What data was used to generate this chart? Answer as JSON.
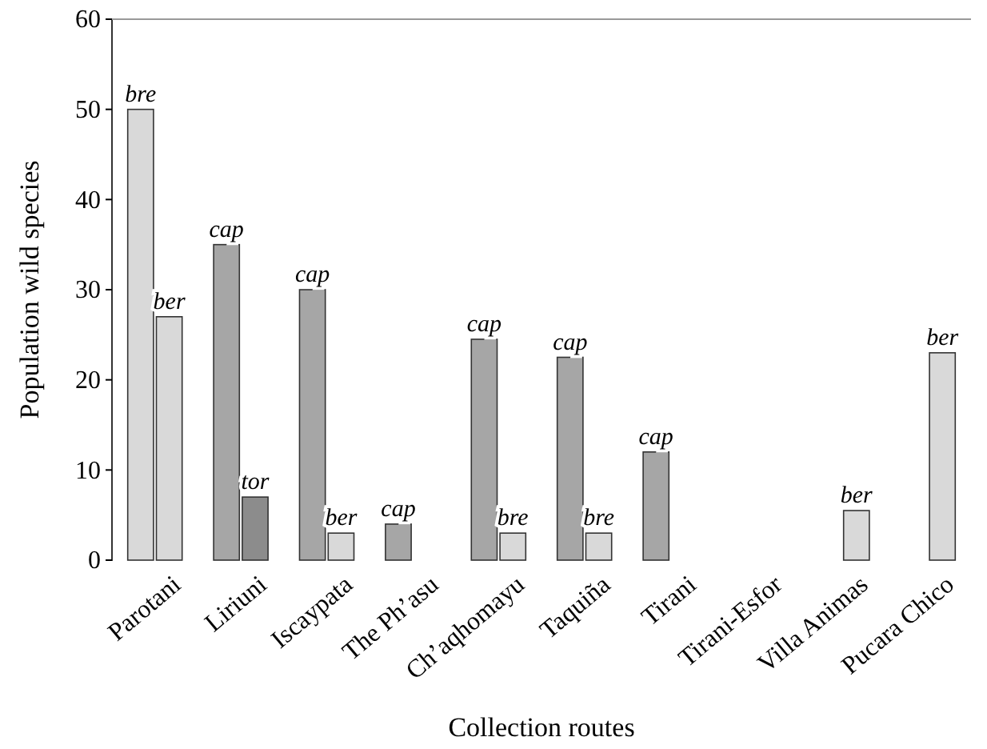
{
  "chart_data": {
    "type": "bar",
    "xlabel": "Collection routes",
    "ylabel": "Population wild species",
    "categories": [
      "Parotani",
      "Liriuni",
      "Iscaypata",
      "The Ph’asu",
      "Ch’aqhomayu",
      "Taquiña",
      "Tirani",
      "Tirani-Esfor",
      "Villa Animas",
      "Pucara Chico"
    ],
    "series": [
      {
        "colors": [
          "#d9d9d9",
          "#a6a6a6",
          "#a6a6a6",
          "#a6a6a6",
          "#a6a6a6",
          "#a6a6a6",
          "#a6a6a6",
          null,
          null,
          null
        ],
        "values": [
          50,
          35,
          30,
          4,
          24.5,
          22.5,
          12,
          null,
          null,
          null
        ],
        "value_labels": [
          "bre",
          "cap",
          "cap",
          "cap",
          "cap",
          "cap",
          "cap",
          null,
          null,
          null
        ]
      },
      {
        "colors": [
          "#d9d9d9",
          "#8c8c8c",
          "#d9d9d9",
          null,
          "#d9d9d9",
          "#d9d9d9",
          null,
          null,
          "#d9d9d9",
          "#d9d9d9"
        ],
        "values": [
          27,
          7,
          3,
          null,
          3,
          3,
          null,
          null,
          5.5,
          23
        ],
        "value_labels": [
          "ber",
          "tor",
          "ber",
          null,
          "bre",
          "bre",
          null,
          null,
          "ber",
          "ber"
        ]
      }
    ],
    "ylim": [
      0,
      60
    ],
    "yticks": [
      0,
      10,
      20,
      30,
      40,
      50,
      60
    ],
    "grid": false
  }
}
